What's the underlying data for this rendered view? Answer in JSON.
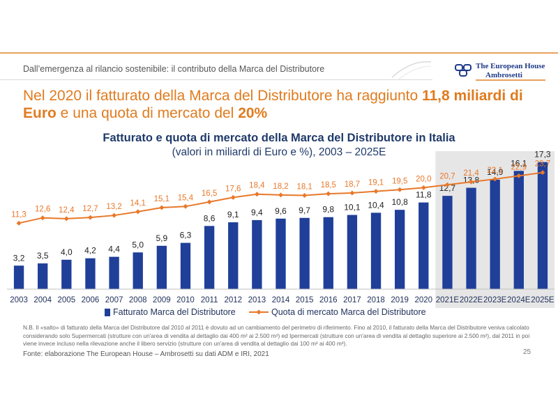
{
  "header": {
    "subtitle": "Dall’emergenza al rilancio sostenibile: il contributo della Marca del Distributore",
    "logo_line1": "The European House",
    "logo_line2": "Ambrosetti"
  },
  "headline": {
    "part1": "Nel 2020 il fatturato della Marca del Distributore ha raggiunto ",
    "bold1": "11,8 miliardi di Euro",
    "part2": " e una quota di mercato del ",
    "bold2": "20%"
  },
  "colors": {
    "bar": "#1f3f99",
    "line": "#e8782a",
    "forecast_bg": "#e6e6e6",
    "headline": "#e07b1f",
    "title": "#1f3a6a"
  },
  "chart_data": {
    "type": "bar",
    "title": "Fatturato e quota di mercato della Marca del Distributore in Italia",
    "subtitle": "(valori in miliardi di Euro e %), 2003 – 2025E",
    "categories": [
      "2003",
      "2004",
      "2005",
      "2006",
      "2007",
      "2008",
      "2009",
      "2010",
      "2011",
      "2012",
      "2013",
      "2014",
      "2015",
      "2016",
      "2017",
      "2018",
      "2019",
      "2020",
      "2021E",
      "2022E",
      "2023E",
      "2024E",
      "2025E"
    ],
    "series": [
      {
        "name": "Fatturato Marca del Distributore",
        "kind": "bar",
        "values": [
          3.2,
          3.5,
          4.0,
          4.2,
          4.4,
          5.0,
          5.9,
          6.3,
          8.6,
          9.1,
          9.4,
          9.6,
          9.7,
          9.8,
          10.1,
          10.4,
          10.8,
          11.8,
          12.7,
          13.8,
          14.9,
          16.1,
          17.3
        ],
        "labels": [
          "3,2",
          "3,5",
          "4,0",
          "4,2",
          "4,4",
          "5,0",
          "5,9",
          "6,3",
          "8,6",
          "9,1",
          "9,4",
          "9,6",
          "9,7",
          "9,8",
          "10,1",
          "10,4",
          "10,8",
          "11,8",
          "12,7",
          "13,8",
          "14,9",
          "16,1",
          "17,3"
        ]
      },
      {
        "name": "Quota di mercato Marca del Distributore",
        "kind": "line",
        "values": [
          11.3,
          12.6,
          12.4,
          12.7,
          13.2,
          14.1,
          15.1,
          15.4,
          16.5,
          17.6,
          18.4,
          18.2,
          18.1,
          18.5,
          18.7,
          19.1,
          19.5,
          20.0,
          20.7,
          21.4,
          22.1,
          22.9,
          23.7
        ],
        "labels": [
          "11,3",
          "12,6",
          "12,4",
          "12,7",
          "13,2",
          "14,1",
          "15,1",
          "15,4",
          "16,5",
          "17,6",
          "18,4",
          "18,2",
          "18,1",
          "18,5",
          "18,7",
          "19,1",
          "19,5",
          "20,0",
          "20,7",
          "21,4",
          "22,1",
          "22,9",
          "23,7"
        ]
      }
    ],
    "forecast_start_index": 18,
    "bar_ylim": [
      0,
      18.5
    ],
    "line_ylim": [
      0,
      30
    ],
    "legend_position": "bottom-center",
    "grid": false
  },
  "footer": {
    "note": "N.B. Il «salto» di fatturato della Marca del Distributore dal 2010 al 2011 è dovuto ad un cambiamento del perimetro di riferimento. Fino al 2010, il fatturato della Marca del Distributore veniva calcolato considerando solo Supermercati (strutture con un'area di vendita al dettaglio dai 400 m² ai 2.500 m²) ed Ipermercati (strutture con un'area di vendita al dettaglio superiore ai 2.500 m²), dal 2011 in poi viene invece incluso nella rilevazione anche il libero servizio (strutture con un'area di vendita al dettaglio dai 100 m² ai 400 m²).",
    "source": "Fonte: elaborazione The European House – Ambrosetti su dati ADM e IRI, 2021",
    "page_number": "25"
  }
}
